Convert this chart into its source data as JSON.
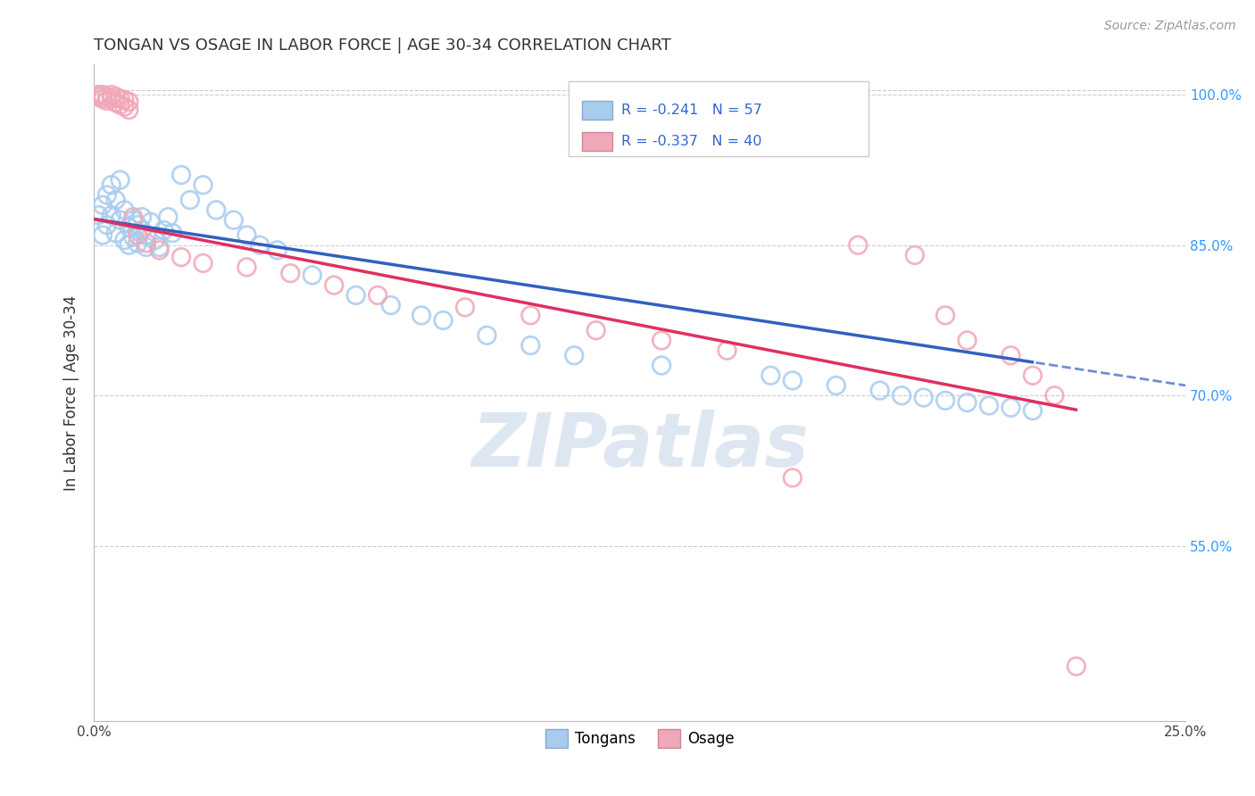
{
  "title": "TONGAN VS OSAGE IN LABOR FORCE | AGE 30-34 CORRELATION CHART",
  "source_text": "Source: ZipAtlas.com",
  "ylabel": "In Labor Force | Age 30-34",
  "xmin": 0.0,
  "xmax": 0.25,
  "ymin": 0.375,
  "ymax": 1.03,
  "ytick_positions": [
    1.0,
    0.85,
    0.7,
    0.55
  ],
  "ytick_labels": [
    "100.0%",
    "85.0%",
    "70.0%",
    "55.0%"
  ],
  "blue_R": -0.241,
  "blue_N": 57,
  "pink_R": -0.337,
  "pink_N": 40,
  "blue_color": "#A8CCEE",
  "pink_color": "#F0A8B8",
  "blue_edge_color": "#88AACC",
  "pink_edge_color": "#CC8899",
  "blue_line_color": "#3060C0",
  "pink_line_color": "#E03060",
  "grid_color": "#CCCCCC",
  "background_color": "#FFFFFF",
  "watermark_color": "#C8D8E8",
  "tongans_x": [
    0.001,
    0.002,
    0.002,
    0.003,
    0.003,
    0.004,
    0.004,
    0.005,
    0.005,
    0.006,
    0.006,
    0.007,
    0.007,
    0.008,
    0.008,
    0.009,
    0.009,
    0.01,
    0.01,
    0.011,
    0.011,
    0.012,
    0.012,
    0.013,
    0.014,
    0.015,
    0.016,
    0.017,
    0.018,
    0.02,
    0.022,
    0.025,
    0.028,
    0.032,
    0.035,
    0.038,
    0.042,
    0.05,
    0.06,
    0.068,
    0.075,
    0.08,
    0.09,
    0.1,
    0.11,
    0.13,
    0.155,
    0.16,
    0.17,
    0.18,
    0.185,
    0.19,
    0.195,
    0.2,
    0.205,
    0.21,
    0.215
  ],
  "tongans_y": [
    0.88,
    0.89,
    0.86,
    0.9,
    0.87,
    0.91,
    0.88,
    0.895,
    0.862,
    0.915,
    0.875,
    0.855,
    0.885,
    0.868,
    0.85,
    0.875,
    0.858,
    0.87,
    0.852,
    0.865,
    0.878,
    0.848,
    0.86,
    0.873,
    0.855,
    0.848,
    0.865,
    0.878,
    0.862,
    0.92,
    0.895,
    0.91,
    0.885,
    0.875,
    0.86,
    0.85,
    0.845,
    0.82,
    0.8,
    0.79,
    0.78,
    0.775,
    0.76,
    0.75,
    0.74,
    0.73,
    0.72,
    0.715,
    0.71,
    0.705,
    0.7,
    0.698,
    0.695,
    0.693,
    0.69,
    0.688,
    0.685
  ],
  "osage_x": [
    0.001,
    0.001,
    0.002,
    0.002,
    0.003,
    0.003,
    0.004,
    0.004,
    0.005,
    0.005,
    0.006,
    0.006,
    0.007,
    0.007,
    0.008,
    0.008,
    0.009,
    0.01,
    0.012,
    0.015,
    0.02,
    0.025,
    0.035,
    0.045,
    0.055,
    0.065,
    0.085,
    0.1,
    0.115,
    0.13,
    0.145,
    0.16,
    0.175,
    0.188,
    0.195,
    0.2,
    0.21,
    0.215,
    0.22,
    0.225
  ],
  "osage_y": [
    1.0,
    0.998,
    1.0,
    0.996,
    0.998,
    0.994,
    1.0,
    0.996,
    0.998,
    0.992,
    0.996,
    0.99,
    0.995,
    0.988,
    0.993,
    0.985,
    0.878,
    0.86,
    0.852,
    0.845,
    0.838,
    0.832,
    0.828,
    0.822,
    0.81,
    0.8,
    0.788,
    0.78,
    0.765,
    0.755,
    0.745,
    0.618,
    0.85,
    0.84,
    0.78,
    0.755,
    0.74,
    0.72,
    0.7,
    0.43
  ]
}
